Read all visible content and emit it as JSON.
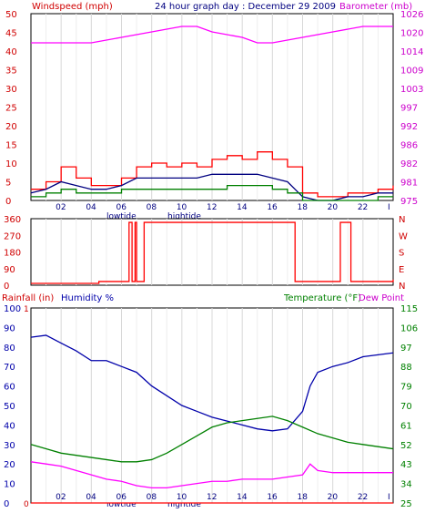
{
  "chart_data": [
    {
      "type": "line",
      "title": "24 hour graph day : December 29 2009",
      "left_label": "Windspeed (mph)",
      "right_label": "Barometer (mb)",
      "left_ticks": [
        "0",
        "5",
        "10",
        "15",
        "20",
        "25",
        "30",
        "35",
        "40",
        "45",
        "50"
      ],
      "right_ticks": [
        "975",
        "981",
        "982",
        "986",
        "992",
        "997",
        "1003",
        "1009",
        "1014",
        "1020",
        "1026"
      ],
      "x_ticks": [
        "02",
        "04",
        "06",
        "08",
        "10",
        "12",
        "14",
        "16",
        "18",
        "20",
        "22",
        "I"
      ],
      "tide_labels": [
        "lowtide",
        "hightide"
      ],
      "ylim_left": [
        0,
        50
      ],
      "series": [
        {
          "name": "Windspeed (mph)",
          "color": "#ff0000",
          "axis": "left",
          "x": [
            0,
            1,
            2,
            3,
            4,
            5,
            6,
            7,
            8,
            9,
            10,
            11,
            12,
            13,
            14,
            15,
            16,
            17,
            18,
            19,
            20,
            21,
            22,
            23,
            24
          ],
          "values": [
            3,
            5,
            9,
            6,
            4,
            4,
            6,
            9,
            10,
            9,
            10,
            9,
            11,
            12,
            11,
            13,
            11,
            9,
            2,
            1,
            1,
            2,
            2,
            3,
            4
          ]
        },
        {
          "name": "Wind average",
          "color": "#000080",
          "axis": "left",
          "x": [
            0,
            1,
            2,
            3,
            4,
            5,
            6,
            7,
            8,
            9,
            10,
            11,
            12,
            13,
            14,
            15,
            16,
            17,
            18,
            19,
            20,
            21,
            22,
            23,
            24
          ],
          "values": [
            2,
            3,
            5,
            4,
            3,
            3,
            4,
            6,
            6,
            6,
            6,
            6,
            7,
            7,
            7,
            7,
            6,
            5,
            1,
            0,
            0,
            1,
            1,
            2,
            2
          ]
        },
        {
          "name": "Wind gust",
          "color": "#008000",
          "axis": "left",
          "x": [
            0,
            1,
            2,
            3,
            4,
            5,
            6,
            7,
            8,
            9,
            10,
            11,
            12,
            13,
            14,
            15,
            16,
            17,
            18,
            19,
            20,
            21,
            22,
            23,
            24
          ],
          "values": [
            1,
            2,
            3,
            2,
            2,
            2,
            3,
            3,
            3,
            3,
            3,
            3,
            3,
            4,
            4,
            4,
            3,
            2,
            0,
            0,
            0,
            0,
            0,
            1,
            1
          ]
        },
        {
          "name": "Barometer (mb)",
          "color": "#ff00ff",
          "axis": "right",
          "x": [
            0,
            2,
            4,
            6,
            8,
            10,
            11,
            12,
            14,
            15,
            16,
            18,
            20,
            22,
            24
          ],
          "values": [
            1024,
            1024,
            1024,
            1025,
            1026,
            1027,
            1027,
            1026,
            1025,
            1024,
            1024,
            1025,
            1026,
            1027,
            1027
          ]
        }
      ]
    },
    {
      "type": "line",
      "left_ticks": [
        "0",
        "90",
        "180",
        "270",
        "360"
      ],
      "right_ticks": [
        "N",
        "E",
        "S",
        "W",
        "N"
      ],
      "ylim": [
        0,
        360
      ],
      "series": [
        {
          "name": "Wind direction",
          "color": "#ff0000",
          "x": [
            0,
            4.5,
            4.6,
            4.7,
            6.5,
            6.6,
            6.7,
            6.9,
            7.0,
            7.5,
            8.0,
            9.0,
            10.0,
            11.0,
            12.0,
            13.0,
            14.0,
            15.0,
            16.0,
            17.0,
            17.5,
            18,
            20,
            20.5,
            21,
            21.2,
            24
          ],
          "values": [
            10,
            20,
            20,
            20,
            340,
            340,
            20,
            340,
            20,
            340,
            340,
            340,
            340,
            340,
            340,
            340,
            340,
            340,
            340,
            340,
            20,
            20,
            20,
            340,
            340,
            20,
            30
          ]
        }
      ]
    },
    {
      "type": "line",
      "labels": {
        "rainfall": "Rainfall (in)",
        "humidity": "Humidity %",
        "temperature": "Temperature (°F)",
        "dewpoint": "Dew Point"
      },
      "left_ticks": [
        "0",
        "10",
        "20",
        "30",
        "40",
        "50",
        "60",
        "70",
        "80",
        "90",
        "100"
      ],
      "rain_ticks": [
        "0",
        "",
        "",
        "",
        "",
        "",
        "",
        "",
        "",
        "",
        "1"
      ],
      "right_ticks": [
        "25",
        "34",
        "43",
        "52",
        "61",
        "70",
        "79",
        "88",
        "97",
        "106",
        "115"
      ],
      "ylim_left": [
        0,
        100
      ],
      "ylim_right": [
        25,
        115
      ],
      "series": [
        {
          "name": "Humidity %",
          "color": "#0000aa",
          "axis": "left",
          "x": [
            0,
            1,
            2,
            3,
            4,
            5,
            6,
            7,
            8,
            9,
            10,
            11,
            12,
            13,
            14,
            15,
            16,
            17,
            18,
            18.5,
            19,
            20,
            21,
            22,
            23,
            24
          ],
          "values": [
            85,
            86,
            82,
            78,
            73,
            73,
            70,
            67,
            60,
            55,
            50,
            47,
            44,
            42,
            40,
            38,
            37,
            38,
            47,
            60,
            67,
            70,
            72,
            75,
            76,
            77
          ]
        },
        {
          "name": "Temperature (°F)",
          "color": "#008000",
          "axis": "right",
          "x": [
            0,
            1,
            2,
            3,
            4,
            5,
            6,
            7,
            8,
            9,
            10,
            11,
            12,
            13,
            14,
            15,
            16,
            17,
            18,
            19,
            20,
            21,
            22,
            23,
            24
          ],
          "values": [
            52,
            50,
            48,
            47,
            46,
            45,
            44,
            44,
            45,
            48,
            52,
            56,
            60,
            62,
            63,
            64,
            65,
            63,
            60,
            57,
            55,
            53,
            52,
            51,
            50
          ]
        },
        {
          "name": "Dew Point",
          "color": "#ff00ff",
          "axis": "right",
          "x": [
            0,
            1,
            2,
            3,
            4,
            5,
            6,
            7,
            8,
            9,
            10,
            11,
            12,
            13,
            14,
            15,
            16,
            17,
            18,
            18.5,
            19,
            20,
            21,
            22,
            23,
            24
          ],
          "values": [
            44,
            43,
            42,
            40,
            38,
            36,
            35,
            33,
            32,
            32,
            33,
            34,
            35,
            35,
            36,
            36,
            36,
            37,
            38,
            43,
            40,
            39,
            39,
            39,
            39,
            39
          ]
        },
        {
          "name": "Rainfall (in)",
          "color": "#ff0000",
          "axis": "rain",
          "x": [
            0,
            24
          ],
          "values": [
            0,
            0
          ]
        }
      ]
    }
  ]
}
